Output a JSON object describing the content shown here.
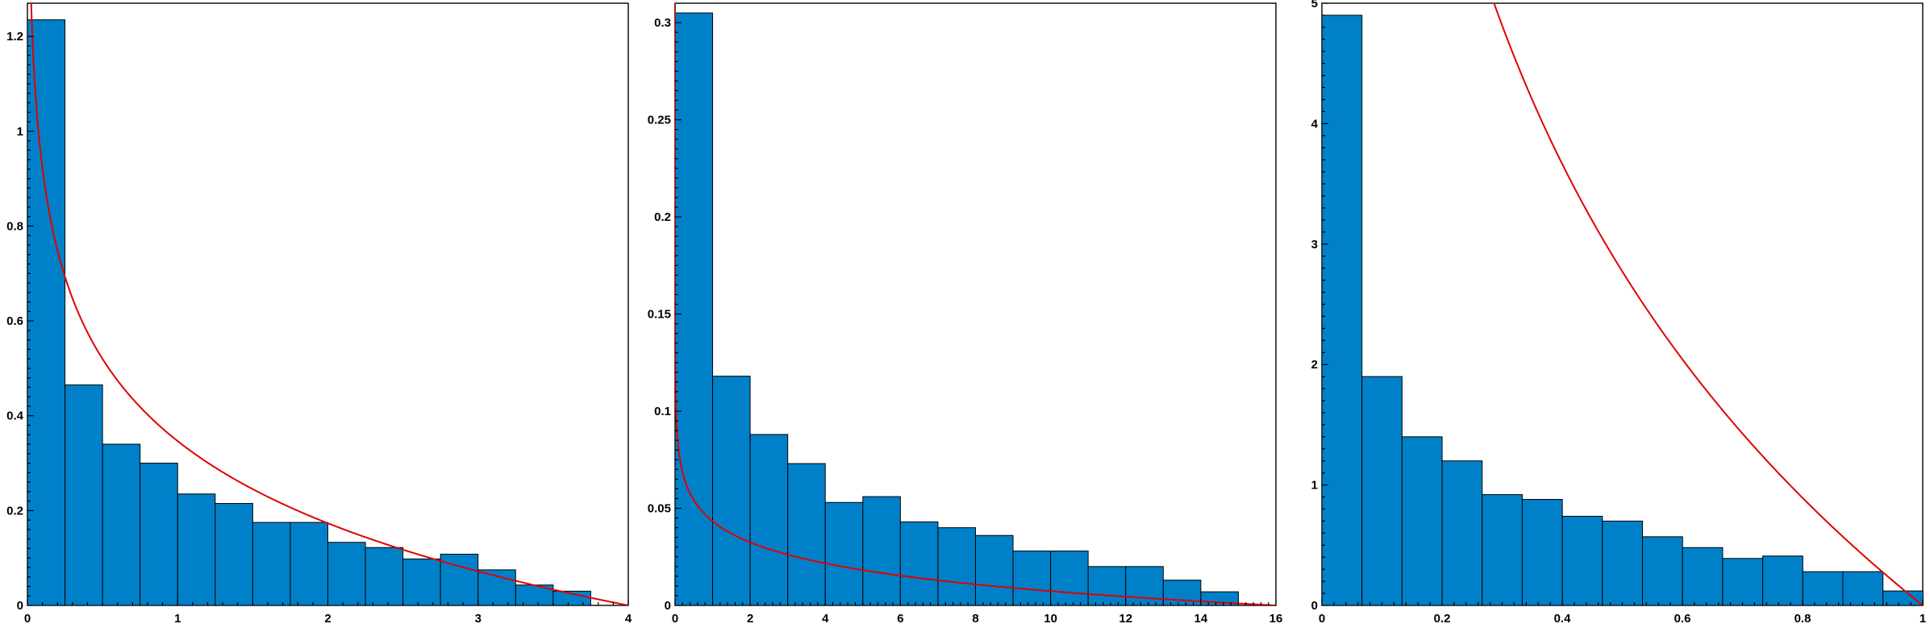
{
  "chart_data": [
    {
      "type": "bar",
      "bar_color": "#0080c8",
      "curve_color": "#e00000",
      "bin_width": 0.25,
      "bin_start": 0,
      "values": [
        1.235,
        0.465,
        0.34,
        0.3,
        0.235,
        0.215,
        0.175,
        0.175,
        0.133,
        0.122,
        0.098,
        0.108,
        0.075,
        0.043,
        0.03
      ],
      "curve": {
        "kind": "log_inverse",
        "x_max": 4,
        "scale": 1.0
      },
      "xlim": [
        0,
        4
      ],
      "ylim": [
        0,
        1.27
      ],
      "xticks": [
        0,
        1,
        2,
        3,
        4
      ],
      "xtick_labels": [
        "0",
        "1",
        "2",
        "3",
        "4"
      ],
      "yticks": [
        0,
        0.2,
        0.4,
        0.6,
        0.8,
        1,
        1.2
      ],
      "ytick_labels": [
        "0",
        "0.2",
        "0.4",
        "0.6",
        "0.8",
        "1",
        "1.2"
      ],
      "title": "",
      "xlabel": "",
      "ylabel": ""
    },
    {
      "type": "bar",
      "bar_color": "#0080c8",
      "curve_color": "#e00000",
      "bin_width": 1,
      "bin_start": 0,
      "values": [
        0.305,
        0.118,
        0.088,
        0.073,
        0.053,
        0.056,
        0.043,
        0.04,
        0.036,
        0.028,
        0.028,
        0.02,
        0.02,
        0.013,
        0.007
      ],
      "curve": {
        "kind": "log_inverse",
        "x_max": 16,
        "scale": 0.25
      },
      "xlim": [
        0,
        16
      ],
      "ylim": [
        0,
        0.31
      ],
      "xticks": [
        0,
        2,
        4,
        6,
        8,
        10,
        12,
        14,
        16
      ],
      "xtick_labels": [
        "0",
        "2",
        "4",
        "6",
        "8",
        "10",
        "12",
        "14",
        "16"
      ],
      "yticks": [
        0,
        0.05,
        0.1,
        0.15,
        0.2,
        0.25,
        0.3
      ],
      "ytick_labels": [
        "0",
        "0.05",
        "0.1",
        "0.15",
        "0.2",
        "0.25",
        "0.3"
      ],
      "title": "",
      "xlabel": "",
      "ylabel": ""
    },
    {
      "type": "bar",
      "bar_color": "#0080c8",
      "curve_color": "#e00000",
      "bin_width": 0.0667,
      "bin_start": 0,
      "values": [
        4.9,
        1.9,
        1.4,
        1.2,
        0.92,
        0.88,
        0.74,
        0.7,
        0.57,
        0.48,
        0.39,
        0.41,
        0.28,
        0.28,
        0.12
      ],
      "curve": {
        "kind": "log_inverse",
        "x_max": 1,
        "scale": 4.0
      },
      "xlim": [
        0,
        1
      ],
      "ylim": [
        0,
        5
      ],
      "xticks": [
        0,
        0.2,
        0.4,
        0.6,
        0.8,
        1
      ],
      "xtick_labels": [
        "0",
        "0.2",
        "0.4",
        "0.6",
        "0.8",
        "1"
      ],
      "yticks": [
        0,
        1,
        2,
        3,
        4,
        5
      ],
      "ytick_labels": [
        "0",
        "1",
        "2",
        "3",
        "4",
        "5"
      ],
      "title": "",
      "xlabel": "",
      "ylabel": ""
    }
  ]
}
